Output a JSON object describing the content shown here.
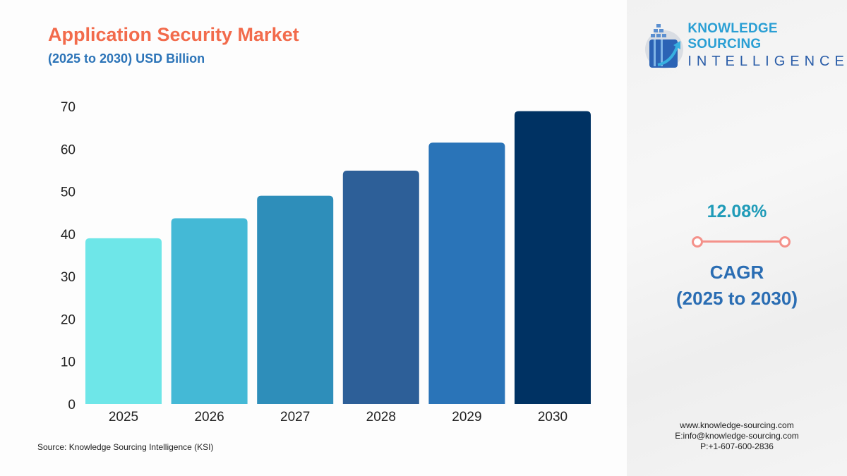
{
  "header": {
    "title": "Application Security Market",
    "subtitle": "(2025 to 2030) USD Billion"
  },
  "chart_data": {
    "type": "bar",
    "title": "Application Security Market",
    "subtitle": "(2025 to 2030) USD Billion",
    "xlabel": "",
    "ylabel": "",
    "categories": [
      "2025",
      "2026",
      "2027",
      "2028",
      "2029",
      "2030"
    ],
    "values": [
      39.0,
      43.7,
      49.0,
      54.9,
      61.5,
      68.9
    ],
    "colors": [
      "#6ee6e8",
      "#44b9d6",
      "#2e8eba",
      "#2d5f98",
      "#2a74b8",
      "#003263"
    ],
    "ylim": [
      0,
      70
    ],
    "yticks": [
      "0",
      "10",
      "20",
      "30",
      "40",
      "50",
      "60",
      "70"
    ],
    "grid": false
  },
  "source": "Source: Knowledge Sourcing Intelligence (KSI)",
  "logo": {
    "line1": "KNOWLEDGE SOURCING",
    "line2": "INTELLIGENCE"
  },
  "cagr": {
    "value": "12.08%",
    "label": "CAGR",
    "period": "(2025 to 2030)"
  },
  "contact": {
    "website": "www.knowledge-sourcing.com",
    "email": "E:info@knowledge-sourcing.com",
    "phone": "P:+1-607-600-2836"
  }
}
